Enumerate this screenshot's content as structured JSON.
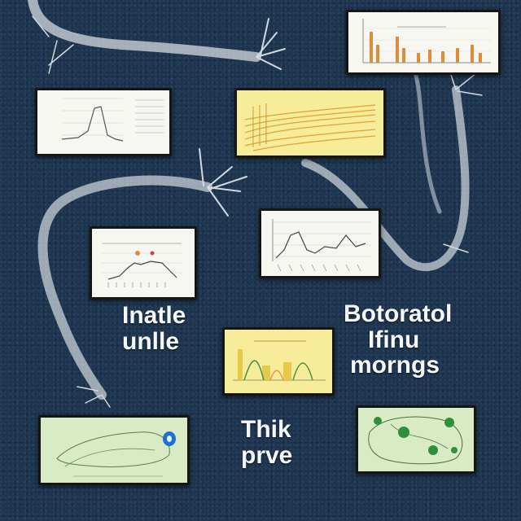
{
  "captions": {
    "left": [
      "Inatle",
      "unlle"
    ],
    "right": [
      "Botoratol",
      "Ifinu",
      "morngs"
    ],
    "bottom": [
      "Thik",
      "prve"
    ]
  },
  "colors": {
    "background": "#1d3550",
    "fiber": "#e8ecef",
    "chart_orange": "#e08a3c",
    "chart_yellow": "#f6ec9a",
    "map_green": "#2f8f3a",
    "marker_blue": "#1e6fd0"
  }
}
